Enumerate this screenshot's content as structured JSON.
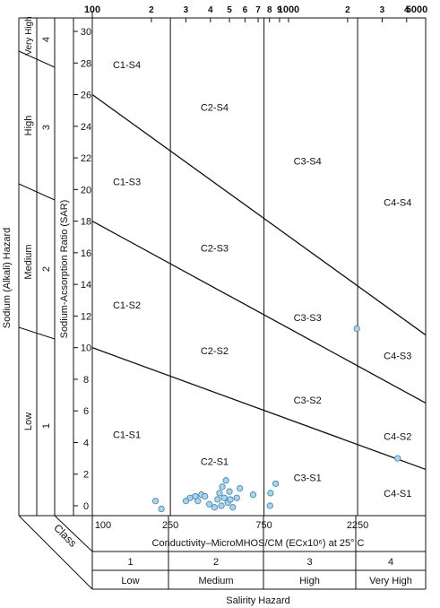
{
  "chart_data": {
    "type": "scatter",
    "title": "",
    "xlabel": "Conductivity–MicroMHOS/CM (ECx10⁶) at 25° C",
    "ylabel": "Sodium-Acsorption Ratio (SAR)",
    "x_scale": "log",
    "xlim": [
      100,
      5000
    ],
    "ylim": [
      0,
      31
    ],
    "top_ticks": [
      {
        "value": 100,
        "label": "100"
      },
      {
        "value": 200,
        "label": "2"
      },
      {
        "value": 300,
        "label": "3"
      },
      {
        "value": 400,
        "label": "4"
      },
      {
        "value": 500,
        "label": "5"
      },
      {
        "value": 600,
        "label": "6"
      },
      {
        "value": 700,
        "label": "7"
      },
      {
        "value": 800,
        "label": "8"
      },
      {
        "value": 900,
        "label": "9"
      },
      {
        "value": 1000,
        "label": "1000"
      },
      {
        "value": 2000,
        "label": "2"
      },
      {
        "value": 3000,
        "label": "3"
      },
      {
        "value": 4000,
        "label": "4"
      },
      {
        "value": 5000,
        "label": "5000"
      }
    ],
    "bottom_ticks": [
      {
        "value": 100,
        "label": "100"
      },
      {
        "value": 250,
        "label": "250"
      },
      {
        "value": 750,
        "label": "750"
      },
      {
        "value": 2250,
        "label": "2250"
      }
    ],
    "y_ticks": [
      0,
      2,
      4,
      6,
      8,
      10,
      12,
      14,
      16,
      18,
      20,
      22,
      24,
      26,
      28,
      30
    ],
    "class_boundaries": [
      250,
      750,
      2250
    ],
    "sodium_lines": [
      {
        "x": [
          100,
          5000
        ],
        "y": [
          26,
          10.8
        ]
      },
      {
        "x": [
          100,
          5000
        ],
        "y": [
          18,
          6.5
        ]
      },
      {
        "x": [
          100,
          5000
        ],
        "y": [
          10,
          2.3
        ]
      }
    ],
    "zone_labels": [
      {
        "text": "C1-S4",
        "x": 150,
        "y": 27.9
      },
      {
        "text": "C1-S3",
        "x": 150,
        "y": 20.5
      },
      {
        "text": "C1-S2",
        "x": 150,
        "y": 12.7
      },
      {
        "text": "C1-S1",
        "x": 150,
        "y": 4.5
      },
      {
        "text": "C2-S4",
        "x": 420,
        "y": 25.2
      },
      {
        "text": "C2-S3",
        "x": 420,
        "y": 16.3
      },
      {
        "text": "C2-S2",
        "x": 420,
        "y": 9.8
      },
      {
        "text": "C2-S1",
        "x": 420,
        "y": 2.8
      },
      {
        "text": "C3-S4",
        "x": 1250,
        "y": 21.8
      },
      {
        "text": "C3-S3",
        "x": 1250,
        "y": 11.9
      },
      {
        "text": "C3-S2",
        "x": 1250,
        "y": 6.7
      },
      {
        "text": "C3-S1",
        "x": 1250,
        "y": 1.8
      },
      {
        "text": "C4-S4",
        "x": 3600,
        "y": 19.2
      },
      {
        "text": "C4-S3",
        "x": 3600,
        "y": 9.5
      },
      {
        "text": "C4-S2",
        "x": 3600,
        "y": 4.4
      },
      {
        "text": "C4-S1",
        "x": 3600,
        "y": 0.8
      }
    ],
    "points": [
      {
        "x": 210,
        "y": 0.3
      },
      {
        "x": 225,
        "y": -0.2
      },
      {
        "x": 300,
        "y": 0.3
      },
      {
        "x": 315,
        "y": 0.5
      },
      {
        "x": 335,
        "y": 0.6
      },
      {
        "x": 345,
        "y": 0.3
      },
      {
        "x": 360,
        "y": 0.7
      },
      {
        "x": 375,
        "y": 0.6
      },
      {
        "x": 395,
        "y": 0.1
      },
      {
        "x": 420,
        "y": -0.1
      },
      {
        "x": 435,
        "y": 0.4
      },
      {
        "x": 445,
        "y": 0.8
      },
      {
        "x": 455,
        "y": 0.0
      },
      {
        "x": 460,
        "y": 1.2
      },
      {
        "x": 470,
        "y": 0.5
      },
      {
        "x": 480,
        "y": 1.6
      },
      {
        "x": 490,
        "y": 0.2
      },
      {
        "x": 500,
        "y": 0.9
      },
      {
        "x": 505,
        "y": 0.4
      },
      {
        "x": 520,
        "y": -0.1
      },
      {
        "x": 545,
        "y": 0.5
      },
      {
        "x": 565,
        "y": 1.1
      },
      {
        "x": 660,
        "y": 0.7
      },
      {
        "x": 805,
        "y": 0.0
      },
      {
        "x": 810,
        "y": 0.8
      },
      {
        "x": 860,
        "y": 1.4
      },
      {
        "x": 2230,
        "y": 11.2
      },
      {
        "x": 3600,
        "y": 3.0
      }
    ],
    "point_color": "#a9d4ec",
    "point_stroke": "#3f7fa8"
  },
  "sodium_hazard": {
    "title": "Sodium (Alkali) Hazard",
    "levels": [
      {
        "name": "Low",
        "number": "1"
      },
      {
        "name": "Medium",
        "number": "2"
      },
      {
        "name": "High",
        "number": "3"
      },
      {
        "name": "Very High",
        "number": "4"
      }
    ]
  },
  "salinity_hazard": {
    "class_label": "Class",
    "title": "Salirity Hazard",
    "classes": [
      {
        "number": "1",
        "name": "Low"
      },
      {
        "number": "2",
        "name": "Medium"
      },
      {
        "number": "3",
        "name": "High"
      },
      {
        "number": "4",
        "name": "Very High"
      }
    ]
  }
}
